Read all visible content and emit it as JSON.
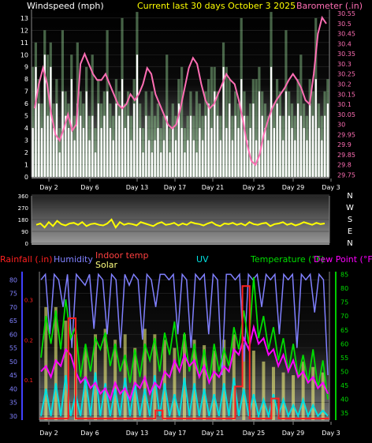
{
  "header": {
    "left_title": "Windspeed (mph)",
    "center_title": "Current last 30 days October 3 2025",
    "right_title": "Barometer (.in)"
  },
  "x_ticks": [
    "Day 2",
    "Day 6",
    "Day 13",
    "Day 17",
    "Day 21",
    "Day 25",
    "Day 29",
    "Day 3"
  ],
  "colors": {
    "wind": "#ffffff",
    "gust": "#9ad99a",
    "barometer": "#ff6eb4",
    "direction": "#ffff00",
    "rain": "#ff2020",
    "humidity": "#8080ff",
    "indoor": "#ff4040",
    "solar": "#ffff80",
    "uv": "#00e0e0",
    "temperature": "#00dd00",
    "dewpoint": "#ff00ff"
  },
  "chart_data": [
    {
      "type": "bar",
      "panel": "wind-barometer",
      "left_axis": {
        "label": "Windspeed (mph)",
        "ticks": [
          "0",
          "1",
          "2",
          "3",
          "4",
          "5",
          "6",
          "7",
          "8",
          "9",
          "10",
          "11",
          "12",
          "13"
        ],
        "range": [
          0,
          13.7
        ]
      },
      "right_axis": {
        "label": "Barometer (.in)",
        "ticks": [
          "29.75",
          "29.8",
          "29.85",
          "29.9",
          "29.95",
          "30",
          "30.05",
          "30.1",
          "30.15",
          "30.2",
          "30.25",
          "30.3",
          "30.35",
          "30.4",
          "30.45",
          "30.5",
          "30.55"
        ],
        "range": [
          29.74,
          30.57
        ]
      },
      "series": [
        {
          "name": "Windspeed (mph)",
          "kind": "bar",
          "values": [
            4,
            9,
            6,
            4,
            10,
            5,
            9,
            4,
            6,
            2,
            7,
            5,
            4,
            8,
            3,
            6,
            5,
            4,
            7,
            3,
            5,
            2,
            6,
            4,
            5,
            7,
            4,
            3,
            6,
            5,
            8,
            4,
            5,
            3,
            6,
            10,
            4,
            2,
            5,
            3,
            2,
            3,
            4,
            2,
            3,
            5,
            2,
            4,
            3,
            6,
            4,
            2,
            3,
            5,
            3,
            2,
            4,
            3,
            5,
            6,
            4,
            7,
            5,
            3,
            9,
            4,
            6,
            3,
            5,
            4,
            8,
            5,
            3,
            4,
            6,
            3,
            7,
            5,
            4,
            3,
            9,
            4,
            6,
            5,
            3,
            7,
            5,
            4,
            3,
            6,
            5,
            4,
            3,
            6,
            5,
            8,
            4,
            3,
            5,
            6
          ]
        },
        {
          "name": "Barometer (.in)",
          "kind": "line",
          "values": [
            30.08,
            30.2,
            30.28,
            30.2,
            30.05,
            29.95,
            29.92,
            29.98,
            30.05,
            29.97,
            30.0,
            30.3,
            30.35,
            30.3,
            30.25,
            30.22,
            30.22,
            30.25,
            30.2,
            30.15,
            30.1,
            30.08,
            30.1,
            30.15,
            30.12,
            30.15,
            30.2,
            30.28,
            30.25,
            30.15,
            30.1,
            30.05,
            30.0,
            29.98,
            30.0,
            30.08,
            30.18,
            30.28,
            30.33,
            30.3,
            30.2,
            30.12,
            30.08,
            30.1,
            30.15,
            30.2,
            30.25,
            30.22,
            30.2,
            30.12,
            30.02,
            29.9,
            29.82,
            29.8,
            29.85,
            29.95,
            30.02,
            30.08,
            30.12,
            30.15,
            30.18,
            30.22,
            30.25,
            30.22,
            30.18,
            30.12,
            30.1,
            30.25,
            30.45,
            30.53,
            30.5
          ]
        }
      ],
      "x_ticks": [
        "Day 2",
        "Day 6",
        "Day 13",
        "Day 17",
        "Day 21",
        "Day 25",
        "Day 29",
        "Day 3"
      ]
    },
    {
      "type": "line",
      "panel": "wind-direction",
      "right_axis_letters": [
        "N",
        "W",
        "S",
        "E",
        "N"
      ],
      "left_axis": {
        "ticks": [
          "0",
          "90",
          "180",
          "270",
          "360"
        ],
        "range": [
          0,
          360
        ]
      },
      "series": [
        {
          "name": "Wind direction",
          "values": [
            140,
            150,
            120,
            160,
            130,
            170,
            145,
            135,
            150,
            155,
            140,
            160,
            130,
            145,
            150,
            140,
            135,
            150,
            180,
            120,
            160,
            140,
            150,
            145,
            135,
            160,
            150,
            140,
            130,
            150,
            160,
            140,
            145,
            155,
            135,
            150,
            140,
            160,
            150,
            145,
            135,
            150,
            160,
            140,
            130,
            150,
            145,
            155,
            140,
            150,
            135,
            160,
            145,
            140,
            150,
            155,
            130,
            145,
            150,
            160,
            140,
            150,
            135,
            145,
            160,
            150,
            140,
            155,
            145,
            150
          ]
        }
      ]
    },
    {
      "type": "line",
      "panel": "temperature-humidity",
      "legend": [
        "Rainfall (.in)",
        "Humidity",
        "Indoor temp",
        "Solar",
        "UV",
        "Temperature (°F)",
        "Dew Point (°F)"
      ],
      "left_axis": {
        "ticks": [
          "30",
          "35",
          "40",
          "45",
          "50",
          "55",
          "60",
          "65",
          "70",
          "75",
          "80"
        ],
        "range": [
          28.5,
          83
        ]
      },
      "rain_axis": {
        "ticks": [
          "0.1",
          "0.2",
          "0.3"
        ],
        "range": [
          0,
          0.37
        ]
      },
      "right_axis": {
        "label": "Temperature (°F)",
        "ticks": [
          "35",
          "40",
          "45",
          "50",
          "55",
          "60",
          "65",
          "70",
          "75",
          "80",
          "85"
        ],
        "range": [
          32.5,
          86
        ]
      },
      "series": [
        {
          "name": "Humidity",
          "values": [
            80,
            82,
            60,
            82,
            80,
            70,
            82,
            55,
            82,
            80,
            78,
            82,
            62,
            82,
            80,
            60,
            82,
            80,
            55,
            82,
            78,
            82,
            80,
            58,
            82,
            80,
            70,
            82,
            82,
            80,
            82,
            60,
            82,
            80,
            55,
            82,
            80,
            82,
            60,
            82,
            80,
            45,
            82,
            82,
            80,
            82,
            50,
            82,
            80,
            82,
            70,
            82,
            80,
            82,
            60,
            82,
            80,
            82,
            55,
            82,
            80,
            82,
            68,
            82,
            80,
            45
          ]
        },
        {
          "name": "Temperature (°F)",
          "values": [
            55,
            70,
            60,
            72,
            58,
            76,
            62,
            66,
            48,
            60,
            50,
            62,
            58,
            64,
            52,
            60,
            50,
            56,
            46,
            58,
            48,
            60,
            54,
            62,
            50,
            64,
            56,
            68,
            52,
            64,
            50,
            60,
            48,
            58,
            46,
            60,
            50,
            58,
            52,
            66,
            58,
            72,
            60,
            84,
            62,
            70,
            58,
            66,
            54,
            62,
            50,
            60,
            48,
            56,
            46,
            58,
            44,
            54,
            40
          ]
        },
        {
          "name": "Dew Point (°F)",
          "values": [
            50,
            52,
            48,
            54,
            52,
            58,
            56,
            50,
            46,
            48,
            44,
            46,
            42,
            44,
            40,
            46,
            42,
            44,
            40,
            46,
            44,
            48,
            42,
            46,
            44,
            50,
            48,
            54,
            50,
            56,
            52,
            54,
            48,
            52,
            46,
            50,
            48,
            52,
            50,
            58,
            56,
            62,
            58,
            66,
            60,
            62,
            56,
            58,
            52,
            56,
            50,
            54,
            48,
            50,
            46,
            48,
            44,
            46,
            42
          ]
        },
        {
          "name": "Rainfall (.in)",
          "values": [
            0,
            0,
            0,
            0,
            0.25,
            0,
            0,
            0,
            0,
            0,
            0,
            0,
            0,
            0,
            0,
            0,
            0.02,
            0,
            0,
            0,
            0,
            0,
            0,
            0,
            0,
            0,
            0,
            0.08,
            0.33,
            0,
            0,
            0,
            0.05,
            0,
            0,
            0,
            0,
            0,
            0,
            0
          ]
        },
        {
          "name": "Solar",
          "values": [
            0,
            70,
            0,
            70,
            0,
            65,
            0,
            60,
            0,
            55,
            0,
            60,
            0,
            62,
            0,
            58,
            0,
            60,
            0,
            55,
            0,
            62,
            0,
            60,
            0,
            58,
            0,
            55,
            0,
            60,
            0,
            58,
            0,
            56,
            0,
            54,
            0,
            58,
            0,
            60,
            0,
            56,
            0,
            54,
            0,
            50,
            0,
            48,
            0,
            46,
            0,
            45,
            0,
            50,
            0,
            48,
            0,
            46,
            0
          ]
        },
        {
          "name": "UV",
          "values": [
            30,
            40,
            30,
            42,
            30,
            45,
            30,
            38,
            30,
            44,
            30,
            46,
            30,
            42,
            30,
            40,
            30,
            44,
            30,
            42,
            30,
            40,
            30,
            45,
            30,
            42,
            30,
            38,
            30,
            44,
            30,
            42,
            30,
            40,
            30,
            38,
            30,
            42,
            30,
            44,
            30,
            40,
            30,
            38,
            30,
            36,
            30,
            38,
            30,
            36,
            30,
            34,
            30,
            36,
            30,
            34,
            30,
            32,
            30
          ]
        }
      ],
      "x_ticks": [
        "Day 2",
        "Day 6",
        "Day 13",
        "Day 17",
        "Day 21",
        "Day 25",
        "Day 29",
        "Day 3"
      ]
    }
  ]
}
